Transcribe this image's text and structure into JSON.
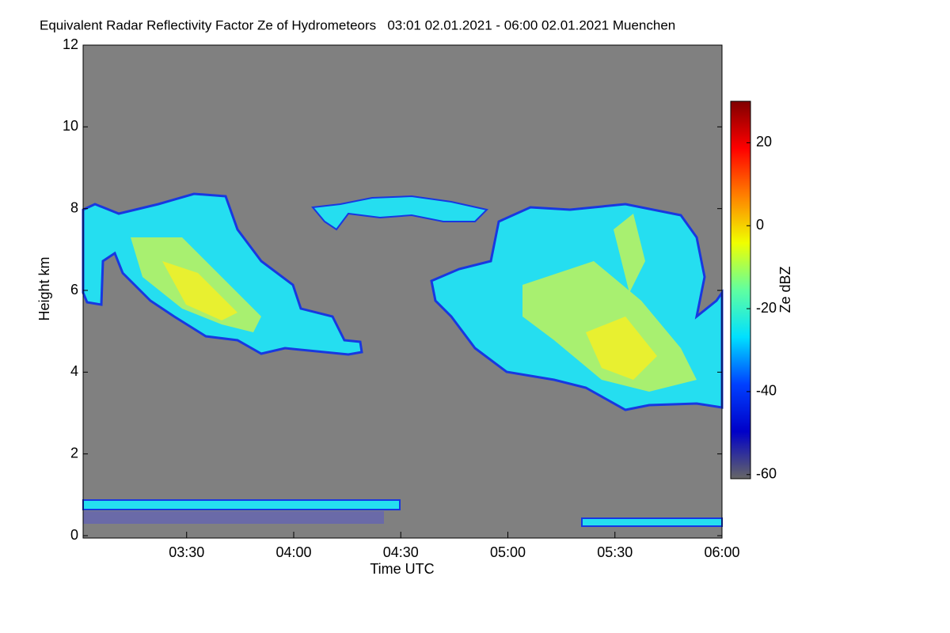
{
  "chart_data": {
    "type": "heatmap",
    "title": "Equivalent Radar Reflectivity Factor Ze of Hydrometeors   03:01 02.01.2021 - 06:00 02.01.2021 Muenchen",
    "xlabel": "Time UTC",
    "ylabel": "Height km",
    "xlim": [
      181,
      360
    ],
    "xticks": [
      {
        "value": 210,
        "label": "03:30"
      },
      {
        "value": 240,
        "label": "04:00"
      },
      {
        "value": 270,
        "label": "04:30"
      },
      {
        "value": 300,
        "label": "05:00"
      },
      {
        "value": 330,
        "label": "05:30"
      },
      {
        "value": 360,
        "label": "06:00"
      }
    ],
    "ylim": [
      0,
      12
    ],
    "yticks": [
      0,
      2,
      4,
      6,
      8,
      10,
      12
    ],
    "colorbar_label": "Ze dBZ",
    "clim": [
      -61,
      30
    ],
    "cticks": [
      -60,
      -40,
      -20,
      0,
      20
    ],
    "colormap": [
      "#666666",
      "#0000c8",
      "#0040ff",
      "#00e0ff",
      "#60ffa0",
      "#f0ff00",
      "#ff8000",
      "#ff0000",
      "#800000"
    ],
    "background": "#808080"
  }
}
